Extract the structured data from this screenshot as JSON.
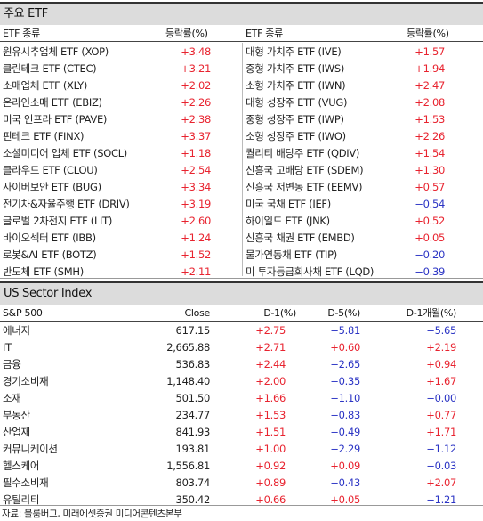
{
  "etf": {
    "title": "주요 ETF",
    "headers": {
      "name1": "ETF 종류",
      "chg1": "등락률(%)",
      "name2": "ETF 종류",
      "chg2": "등락률(%)"
    },
    "left": [
      {
        "name": "원유시추업체 ETF (XOP)",
        "change": "+3.48"
      },
      {
        "name": "클린테크 ETF (CTEC)",
        "change": "+3.21"
      },
      {
        "name": "소매업체 ETF (XLY)",
        "change": "+2.02"
      },
      {
        "name": "온라인소매 ETF (EBIZ)",
        "change": "+2.26"
      },
      {
        "name": "미국 인프라 ETF (PAVE)",
        "change": "+2.38"
      },
      {
        "name": "핀테크 ETF (FINX)",
        "change": "+3.37"
      },
      {
        "name": "소셜미디어 업체 ETF (SOCL)",
        "change": "+1.18"
      },
      {
        "name": "클라우드 ETF (CLOU)",
        "change": "+2.54"
      },
      {
        "name": "사이버보안 ETF (BUG)",
        "change": "+3.34"
      },
      {
        "name": "전기차&자율주행 ETF (DRIV)",
        "change": "+3.19"
      },
      {
        "name": "글로벌 2차전지 ETF (LIT)",
        "change": "+2.60"
      },
      {
        "name": "바이오섹터 ETF (IBB)",
        "change": "+1.24"
      },
      {
        "name": "로봇&AI ETF (BOTZ)",
        "change": "+1.52"
      },
      {
        "name": "반도체 ETF (SMH)",
        "change": "+2.11"
      }
    ],
    "right": [
      {
        "name": "대형 가치주 ETF (IVE)",
        "change": "+1.57"
      },
      {
        "name": "중형 가치주 ETF (IWS)",
        "change": "+1.94"
      },
      {
        "name": "소형 가치주 ETF (IWN)",
        "change": "+2.47"
      },
      {
        "name": "대형 성장주 ETF (VUG)",
        "change": "+2.08"
      },
      {
        "name": "중형 성장주 ETF (IWP)",
        "change": "+1.53"
      },
      {
        "name": "소형 성장주 ETF (IWO)",
        "change": "+2.26"
      },
      {
        "name": "퀄리티 배당주 ETF (QDIV)",
        "change": "+1.54"
      },
      {
        "name": "신흥국 고배당 ETF (SDEM)",
        "change": "+1.30"
      },
      {
        "name": "신흥국 저변동 ETF (EEMV)",
        "change": "+0.57"
      },
      {
        "name": "미국 국채 ETF (IEF)",
        "change": "−0.54"
      },
      {
        "name": "하이일드 ETF (JNK)",
        "change": "+0.52"
      },
      {
        "name": "신흥국 채권 ETF (EMBD)",
        "change": "+0.05"
      },
      {
        "name": "물가연동채 ETF (TIP)",
        "change": "−0.20"
      },
      {
        "name": "미 투자등급회사채 ETF (LQD)",
        "change": "−0.39"
      }
    ]
  },
  "sector": {
    "title": "US Sector Index",
    "headers": {
      "name": "S&P 500",
      "close": "Close",
      "d1": "D-1(%)",
      "d5": "D-5(%)",
      "m1": "D-1개월(%)"
    },
    "rows": [
      {
        "name": "에너지",
        "close": "617.15",
        "d1": "+2.75",
        "d5": "−5.81",
        "m1": "−5.65"
      },
      {
        "name": "IT",
        "close": "2,665.88",
        "d1": "+2.71",
        "d5": "+0.60",
        "m1": "+2.19"
      },
      {
        "name": "금융",
        "close": "536.83",
        "d1": "+2.44",
        "d5": "−2.65",
        "m1": "+0.94"
      },
      {
        "name": "경기소비재",
        "close": "1,148.40",
        "d1": "+2.00",
        "d5": "−0.35",
        "m1": "+1.67"
      },
      {
        "name": "소재",
        "close": "501.50",
        "d1": "+1.66",
        "d5": "−1.10",
        "m1": "−0.00"
      },
      {
        "name": "부동산",
        "close": "234.77",
        "d1": "+1.53",
        "d5": "−0.83",
        "m1": "+0.77"
      },
      {
        "name": "산업재",
        "close": "841.93",
        "d1": "+1.51",
        "d5": "−0.49",
        "m1": "+1.71"
      },
      {
        "name": "커뮤니케이션",
        "close": "193.81",
        "d1": "+1.00",
        "d5": "−2.29",
        "m1": "−1.12"
      },
      {
        "name": "헬스케어",
        "close": "1,556.81",
        "d1": "+0.92",
        "d5": "+0.09",
        "m1": "−0.03"
      },
      {
        "name": "필수소비재",
        "close": "803.74",
        "d1": "+0.89",
        "d5": "−0.43",
        "m1": "+2.07"
      },
      {
        "name": "유틸리티",
        "close": "350.42",
        "d1": "+0.66",
        "d5": "+0.05",
        "m1": "−1.21"
      }
    ]
  },
  "source": "자료: 블룸버그, 미래에셋증권 미디어콘텐츠본부",
  "colors": {
    "positive": "#e8232f",
    "negative": "#2b34c4",
    "title_bg": "#dcdcdc"
  }
}
